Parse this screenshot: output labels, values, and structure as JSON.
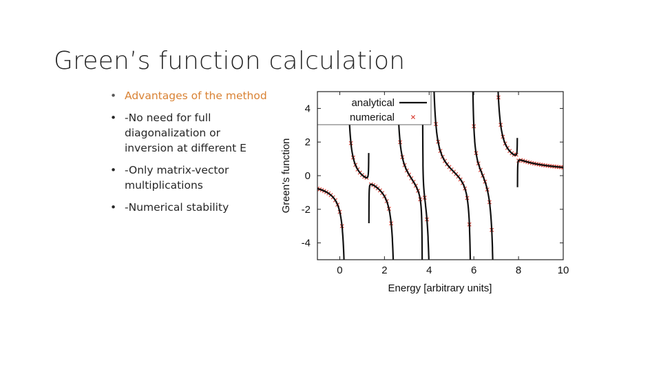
{
  "slide": {
    "title": "Green’s function calculation",
    "bullets": [
      {
        "text": "Advantages of the method",
        "accent": true
      },
      {
        "text": "-No need for full diagonalization or inversion at different E",
        "accent": false
      },
      {
        "text": "-Only matrix-vector multiplications",
        "accent": false
      },
      {
        "text": "-Numerical stability",
        "accent": false
      }
    ],
    "bullet_glyph": "•"
  },
  "colors": {
    "accent_text": "#d98234",
    "body_text": "#262626",
    "analytical_line": "#111111",
    "numerical_marker": "#d9453a"
  },
  "chart_data": {
    "type": "line",
    "title": "",
    "xlabel": "Energy [arbitrary units]",
    "ylabel": "Green's function",
    "xlim": [
      -1,
      10
    ],
    "ylim": [
      -5,
      5
    ],
    "xticks": [
      0,
      2,
      4,
      6,
      8,
      10
    ],
    "yticks": [
      -4,
      -2,
      0,
      2,
      4
    ],
    "legend_position": "top-left",
    "grid": false,
    "poles": [
      {
        "pos": 0.3,
        "weight": 0.5
      },
      {
        "pos": 1.3,
        "weight": -0.01
      },
      {
        "pos": 2.5,
        "weight": 0.5
      },
      {
        "pos": 3.7,
        "weight": 0.05
      },
      {
        "pos": 4.1,
        "weight": 0.6
      },
      {
        "pos": 5.9,
        "weight": 0.3
      },
      {
        "pos": 6.95,
        "weight": 0.6
      },
      {
        "pos": 7.95,
        "weight": -0.007
      }
    ],
    "series": [
      {
        "name": "analytical",
        "style": "line"
      },
      {
        "name": "numerical",
        "style": "x-markers",
        "x_step": 0.1
      }
    ]
  }
}
